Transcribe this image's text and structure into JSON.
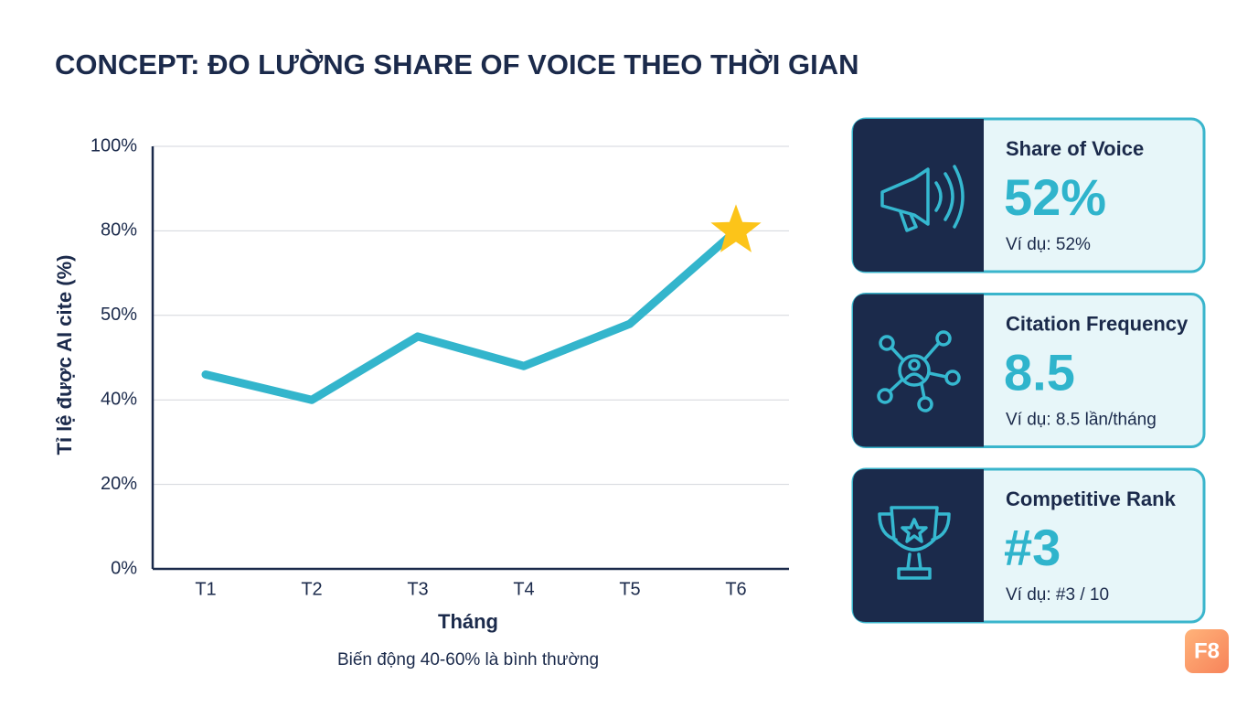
{
  "title": "CONCEPT: ĐO LƯỜNG SHARE OF VOICE THEO THỜI GIAN",
  "chart_data": {
    "type": "line",
    "categories": [
      "T1",
      "T2",
      "T3",
      "T4",
      "T5",
      "T6"
    ],
    "values": [
      43,
      40,
      47.5,
      44,
      49,
      80
    ],
    "color": "#33b5cc",
    "x_label": "Tháng",
    "y_label": "Tỉ lệ được AI cite (%)",
    "note": "Biến động 40-60% là bình thường",
    "ylim": [
      0,
      100
    ],
    "yticks": [
      {
        "value": 0,
        "label": "0%"
      },
      {
        "value": 20,
        "label": "20%"
      },
      {
        "value": 40,
        "label": "40%"
      },
      {
        "value": 50,
        "label": "50%"
      },
      {
        "value": 80,
        "label": "80%"
      },
      {
        "value": 100,
        "label": "100%"
      }
    ],
    "grid": true
  },
  "cards": [
    {
      "title": "Share of Voice",
      "value": "52%",
      "example": "Ví dụ: 52%"
    },
    {
      "title": "Citation Frequency",
      "value": "8.5",
      "example": "Ví dụ: 8.5 lần/tháng"
    },
    {
      "title": "Competitive Rank",
      "value": "#3",
      "example": "Ví dụ: #3 / 10"
    }
  ],
  "badge": "F8"
}
